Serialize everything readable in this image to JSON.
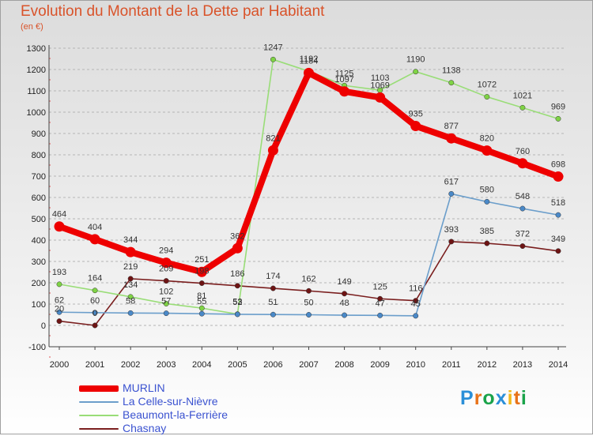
{
  "title": "Evolution du Montant de la Dette par Habitant",
  "subtitle": "(en €)",
  "logo": {
    "text": "Proxiti",
    "colors": [
      "#2a8fd8",
      "#e8731a",
      "#1aa34a",
      "#2a8fd8",
      "#f2b81a",
      "#e8731a",
      "#1aa34a"
    ]
  },
  "chart_data": {
    "type": "line",
    "x": [
      "2000",
      "2001",
      "2002",
      "2003",
      "2004",
      "2005",
      "2006",
      "2007",
      "2008",
      "2009",
      "2010",
      "2011",
      "2012",
      "2013",
      "2014"
    ],
    "ylim": [
      -100,
      1300
    ],
    "yticks": [
      -100,
      0,
      100,
      200,
      300,
      400,
      500,
      600,
      700,
      800,
      900,
      1000,
      1100,
      1200,
      1300
    ],
    "grid": "horizontal dashed",
    "legend_position": "bottom-left",
    "series": [
      {
        "name": "MURLIN",
        "color": "#ee0000",
        "marker": "#ee0000",
        "values": [
          464,
          404,
          344,
          294,
          251,
          362,
          821,
          1184,
          1097,
          1069,
          935,
          877,
          820,
          760,
          698
        ],
        "labels": [
          "464",
          "404",
          "344",
          "294",
          "251",
          "362",
          "821",
          "1184",
          "1097",
          "1069",
          "935",
          "877",
          "820",
          "760",
          "698"
        ]
      },
      {
        "name": "La Celle-sur-Nièvre",
        "color": "#6b9ecb",
        "marker": "#4a89c8",
        "values": [
          62,
          60,
          58,
          57,
          55,
          52,
          51,
          50,
          48,
          47,
          45,
          617,
          580,
          548,
          518
        ],
        "labels": [
          "62",
          "60",
          "58",
          "57",
          "55",
          "52",
          "51",
          "50",
          "48",
          "47",
          "45",
          "617",
          "580",
          "548",
          "518"
        ]
      },
      {
        "name": "Beaumont-la-Ferrière",
        "color": "#99dd77",
        "marker": "#7fd345",
        "values": [
          193,
          164,
          134,
          102,
          81,
          53,
          1247,
          1192,
          1125,
          1103,
          1190,
          1138,
          1072,
          1021,
          969
        ],
        "labels": [
          "193",
          "164",
          "134",
          "102",
          "81",
          "53",
          "1247",
          "1192",
          "1125",
          "1103",
          "1190",
          "1138",
          "1072",
          "1021",
          "969"
        ]
      },
      {
        "name": "Chasnay",
        "color": "#7a1e1e",
        "marker": "#6e1414",
        "values": [
          20,
          0,
          219,
          209,
          198,
          186,
          174,
          162,
          149,
          125,
          116,
          393,
          385,
          372,
          349
        ],
        "labels": [
          "20",
          "0",
          "219",
          "209",
          "198",
          "186",
          "174",
          "162",
          "149",
          "125",
          "116",
          "393",
          "385",
          "372",
          "349"
        ]
      }
    ]
  }
}
